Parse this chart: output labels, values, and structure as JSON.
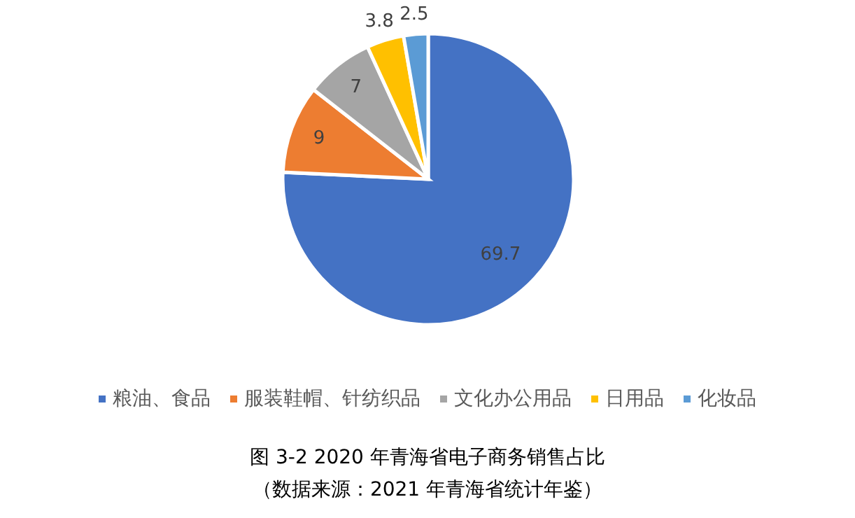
{
  "chart_data": {
    "type": "pie",
    "title": "图 3-2 2020 年青海省电子商务销售占比",
    "annotations": [
      "（数据来源：2021 年青海省统计年鉴）"
    ],
    "categories": [
      "粮油、食品",
      "服装鞋帽、针纺织品",
      "文化办公用品",
      "日用品",
      "化妆品"
    ],
    "values": [
      69.7,
      9,
      7,
      3.8,
      2.5
    ],
    "colors": [
      "#4472c4",
      "#ed7d31",
      "#a5a5a5",
      "#ffc000",
      "#5b9bd5"
    ],
    "data_labels": true,
    "legend": "bottom"
  }
}
